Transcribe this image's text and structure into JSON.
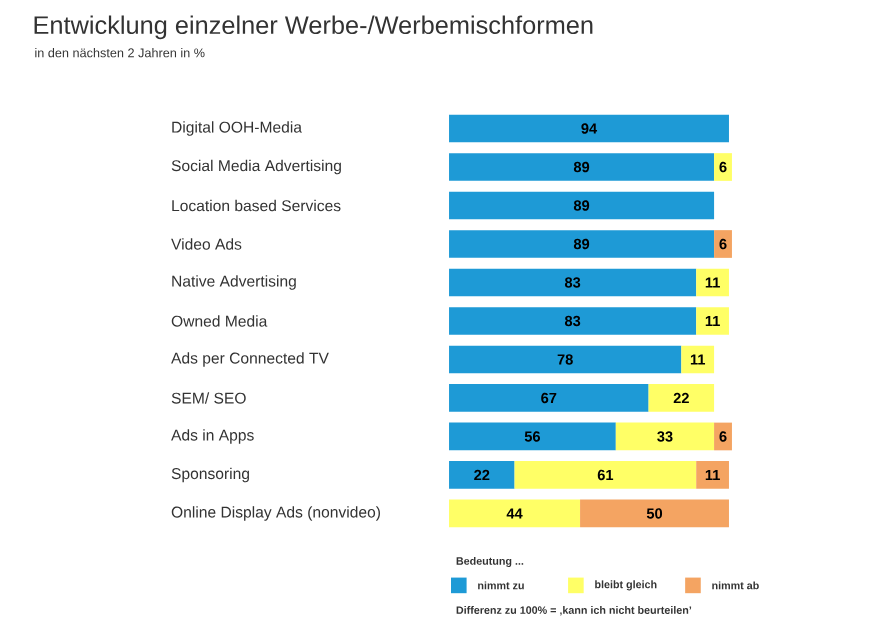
{
  "chart_data": {
    "type": "bar",
    "orientation": "horizontal",
    "stacked": true,
    "title": "Entwicklung einzelner Werbe-/Werbemischformen",
    "subtitle": "in den nächsten 2 Jahren in %",
    "categories": [
      "Digital OOH-Media",
      "Social Media Advertising",
      "Location based Services",
      "Video Ads",
      "Native Advertising",
      "Owned Media",
      "Ads per Connected TV",
      "SEM/ SEO",
      "Ads in Apps",
      "Sponsoring",
      "Online Display Ads (nonvideo)"
    ],
    "series": [
      {
        "name": "nimmt zu",
        "color": "#1e9ad6",
        "values": [
          94,
          89,
          89,
          89,
          83,
          83,
          78,
          67,
          56,
          22,
          null
        ]
      },
      {
        "name": "bleibt gleich",
        "color": "#ffff66",
        "values": [
          null,
          6,
          null,
          null,
          11,
          11,
          11,
          22,
          33,
          61,
          44
        ]
      },
      {
        "name": "nimmt ab",
        "color": "#f4a462",
        "values": [
          null,
          null,
          null,
          6,
          null,
          null,
          null,
          null,
          6,
          11,
          50
        ]
      }
    ],
    "tick_labels": "y",
    "data_labels": true,
    "legend": "bottom",
    "legend_title": "Bedeutung ...",
    "annotations": [
      "Differenz zu 100% = ‚kann ich nicht beurteilen’"
    ]
  }
}
